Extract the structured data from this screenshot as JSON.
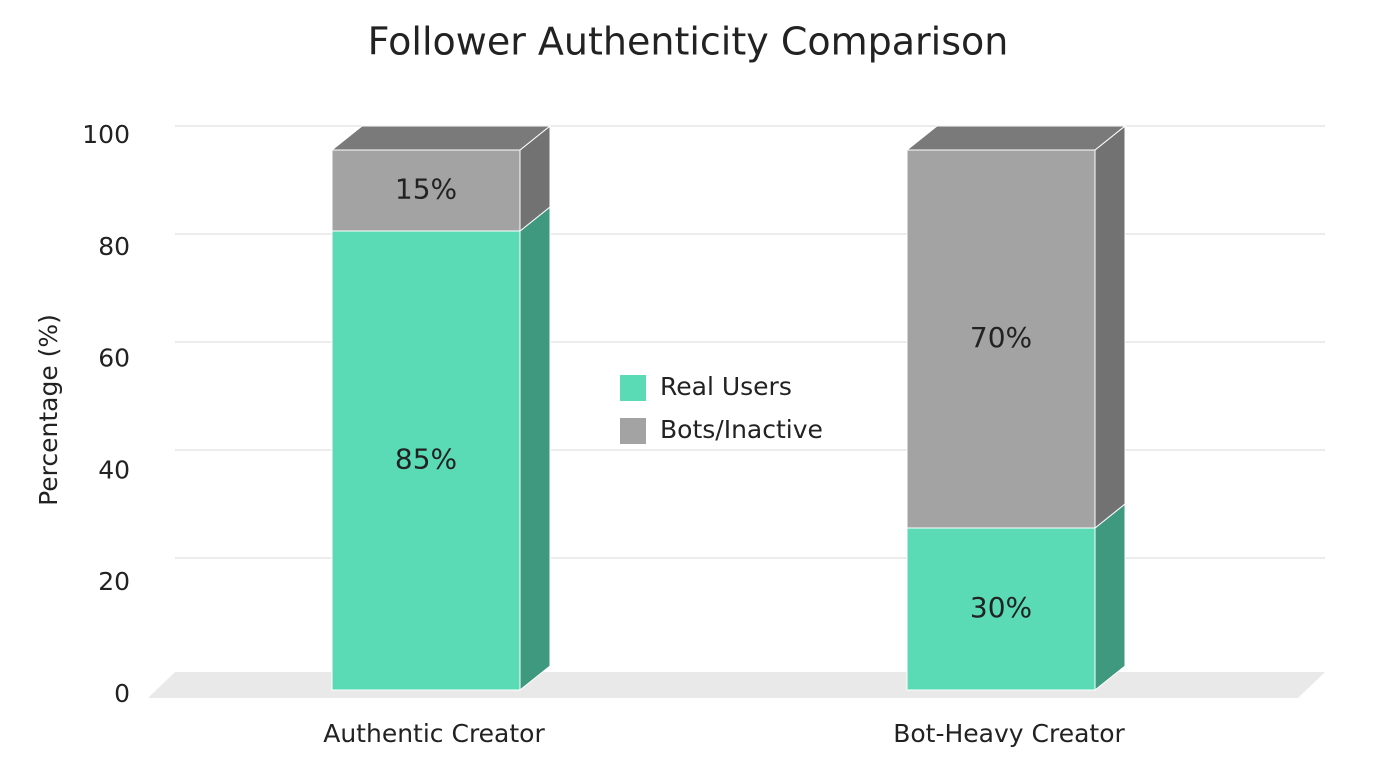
{
  "chart_data": {
    "type": "stacked_bar_3d",
    "title": "Follower Authenticity Comparison",
    "ylabel": "Percentage (%)",
    "categories": [
      "Authentic Creator",
      "Bot-Heavy Creator"
    ],
    "series": [
      {
        "name": "Real Users",
        "color": "#5adab5",
        "values": [
          85,
          30
        ],
        "value_labels": [
          "85%",
          "30%"
        ]
      },
      {
        "name": "Bots/Inactive",
        "color": "#a3a3a3",
        "values": [
          15,
          70
        ],
        "value_labels": [
          "15%",
          "70%"
        ]
      }
    ],
    "ylim": [
      0,
      100
    ],
    "yticks": [
      0,
      20,
      40,
      60,
      80,
      100
    ],
    "grid": true,
    "legend": "center"
  }
}
